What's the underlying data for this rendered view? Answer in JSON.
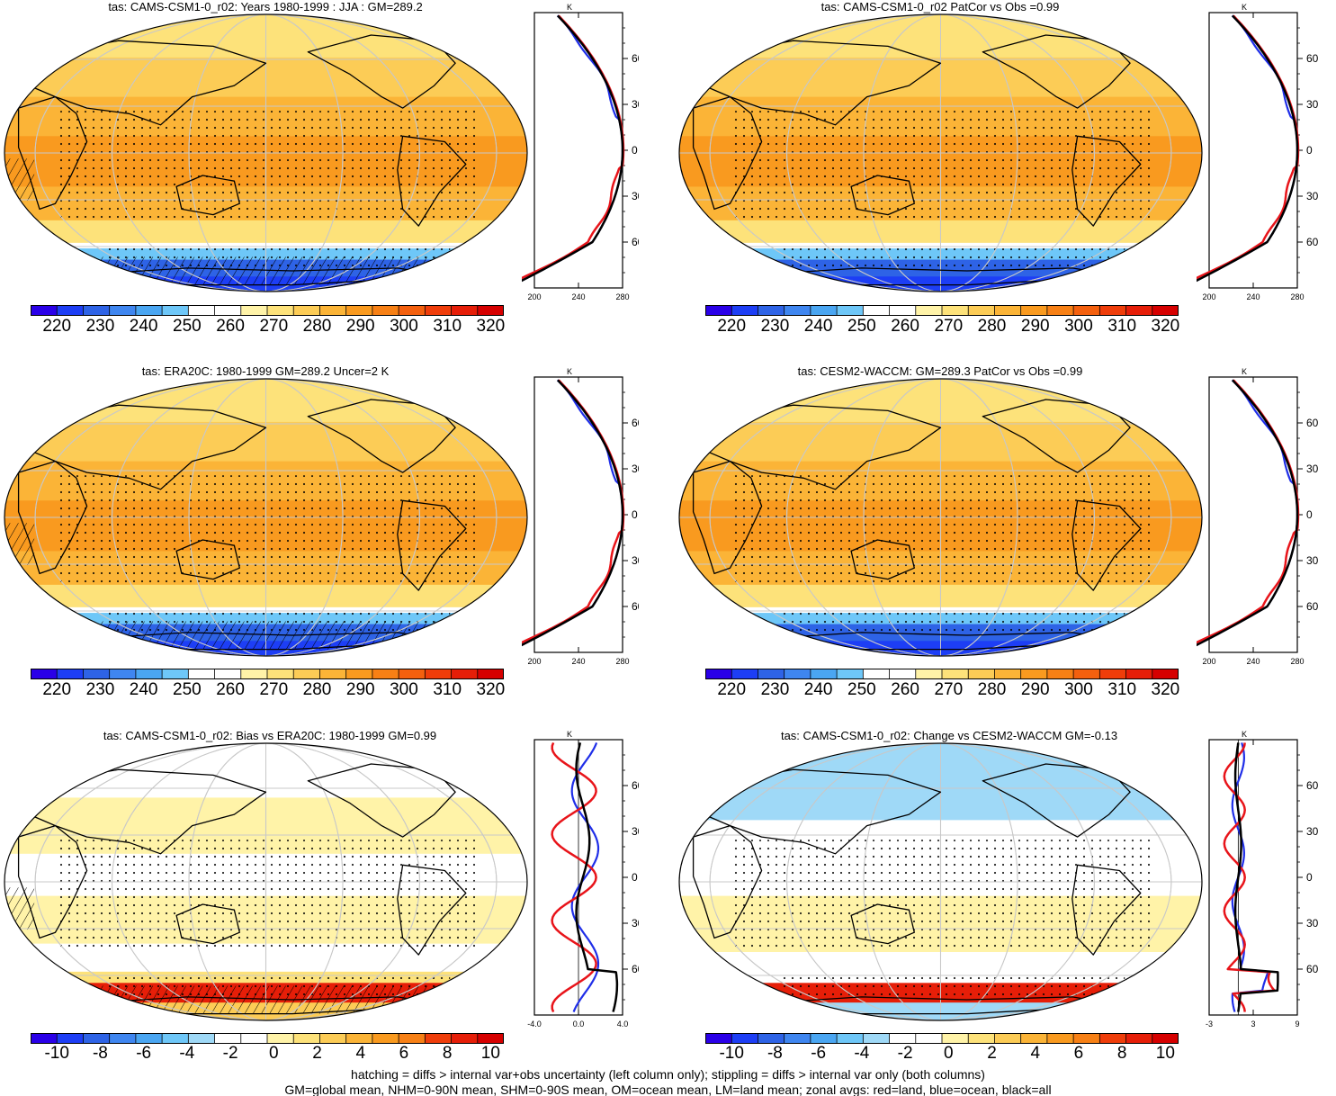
{
  "panels": [
    {
      "title": "tas: CAMS-CSM1-0_r02: Years 1980-1999 : JJA : GM=289.2",
      "kind": "abs",
      "hatch": true
    },
    {
      "title": "tas: CAMS-CSM1-0_r02 PatCor vs Obs =0.99",
      "kind": "abs",
      "hatch": false
    },
    {
      "title": "tas: ERA20C: 1980-1999 GM=289.2 Uncer=2 K",
      "kind": "abs",
      "hatch": true
    },
    {
      "title": "tas: CESM2-WACCM: GM=289.3 PatCor vs Obs =0.99",
      "kind": "abs",
      "hatch": false
    },
    {
      "title": "tas: CAMS-CSM1-0_r02: Bias vs ERA20C: 1980-1999 GM=0.99",
      "kind": "diff",
      "hatch": true
    },
    {
      "title": "tas: CAMS-CSM1-0_r02: Change vs CESM2-WACCM GM=-0.13",
      "kind": "diff2",
      "hatch": false
    }
  ],
  "zonal": {
    "unit": "K",
    "lat_labels": [
      "60N",
      "30N",
      "0",
      "30S",
      "60S"
    ],
    "abs_ticks": [
      "200",
      "240",
      "280"
    ],
    "bias_ticks": [
      "-4.0",
      "0.0",
      "4.0"
    ],
    "change_ticks": [
      "-3",
      "3",
      "9"
    ]
  },
  "colorbar_abs": {
    "labels": [
      "220",
      "230",
      "240",
      "250",
      "260",
      "270",
      "280",
      "290",
      "300",
      "310",
      "320"
    ],
    "colors": [
      "#2a00e8",
      "#1d3ef5",
      "#2e63e6",
      "#3f86f0",
      "#4aa6f2",
      "#6ec7f8",
      "#ffffff",
      "#ffffff",
      "#fff3a8",
      "#fde27a",
      "#fccc56",
      "#fbb437",
      "#f99a1f",
      "#f78015",
      "#f4600e",
      "#ef3d0a",
      "#e61e08",
      "#d60000"
    ]
  },
  "colorbar_diff": {
    "labels": [
      "-10",
      "-8",
      "-6",
      "-4",
      "-2",
      "0",
      "2",
      "4",
      "6",
      "8",
      "10"
    ],
    "colors": [
      "#2a00e8",
      "#1d3ef5",
      "#2e63e6",
      "#3f86f0",
      "#4aa6f2",
      "#6ec7f8",
      "#9fd9f7",
      "#ffffff",
      "#ffffff",
      "#fff3a8",
      "#fde27a",
      "#fccc56",
      "#fbb437",
      "#f99a1f",
      "#f78015",
      "#ef3d0a",
      "#e61e08",
      "#d60000"
    ]
  },
  "colors": {
    "land": "#e8141a",
    "ocean": "#1f2ee8",
    "all": "#000000"
  },
  "footnote_1": "hatching = diffs > internal var+obs uncertainty (left column only); stippling = diffs > internal var only (both columns)",
  "footnote_2": "GM=global mean, NHM=0-90N mean, SHM=0-90S mean, OM=ocean mean, LM=land mean; zonal avgs: red=land, blue=ocean, black=all"
}
